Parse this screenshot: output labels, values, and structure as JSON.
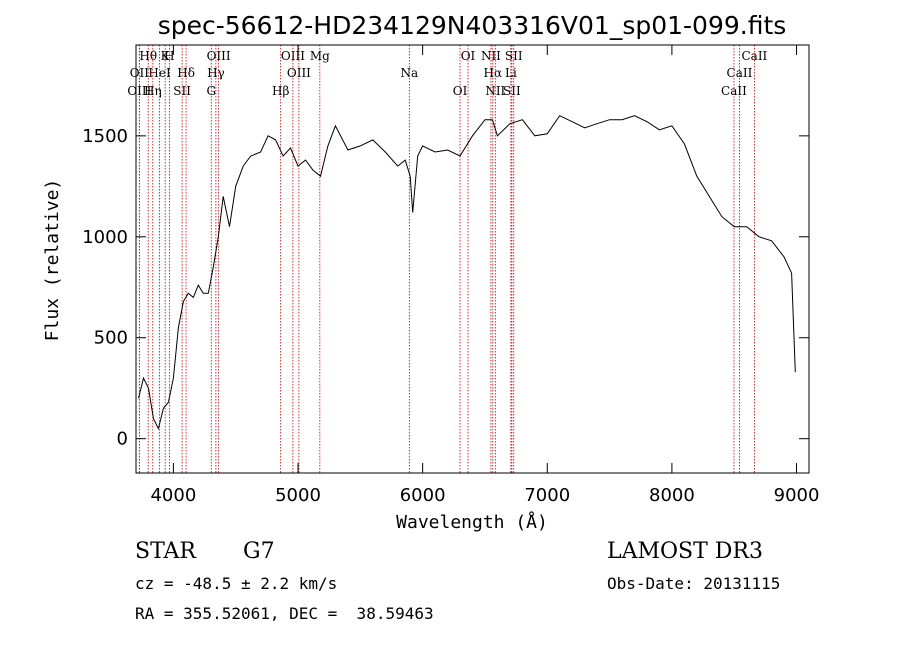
{
  "chart_data": {
    "type": "line",
    "title": "spec-56612-HD234129N403316V01_sp01-099.fits",
    "xlabel": "Wavelength (Å)",
    "ylabel": "Flux (relative)",
    "xlim": [
      3700,
      9100
    ],
    "ylim": [
      -170,
      1950
    ],
    "x_ticks": [
      4000,
      5000,
      6000,
      7000,
      8000,
      9000
    ],
    "y_ticks": [
      0,
      500,
      1000,
      1500
    ],
    "grid": false,
    "series": [
      {
        "x": [
          3720,
          3760,
          3800,
          3840,
          3880,
          3920,
          3960,
          4000,
          4040,
          4080,
          4120,
          4160,
          4200,
          4240,
          4280,
          4320,
          4360,
          4400,
          4450,
          4500,
          4560,
          4620,
          4700,
          4760,
          4820,
          4880,
          4940,
          5000,
          5060,
          5120,
          5180,
          5240,
          5300,
          5400,
          5500,
          5600,
          5700,
          5800,
          5860,
          5900,
          5920,
          5960,
          6000,
          6100,
          6200,
          6300,
          6400,
          6500,
          6560,
          6600,
          6700,
          6800,
          6900,
          7000,
          7100,
          7200,
          7300,
          7400,
          7500,
          7600,
          7700,
          7800,
          7900,
          8000,
          8100,
          8200,
          8300,
          8400,
          8500,
          8600,
          8700,
          8800,
          8900,
          8960,
          8990
        ],
        "y": [
          200,
          300,
          250,
          100,
          50,
          150,
          180,
          300,
          550,
          680,
          720,
          700,
          760,
          720,
          720,
          850,
          1000,
          1200,
          1050,
          1250,
          1350,
          1400,
          1420,
          1500,
          1480,
          1400,
          1440,
          1350,
          1380,
          1330,
          1300,
          1450,
          1550,
          1430,
          1450,
          1480,
          1420,
          1350,
          1380,
          1300,
          1120,
          1400,
          1450,
          1420,
          1430,
          1400,
          1500,
          1580,
          1580,
          1500,
          1560,
          1580,
          1500,
          1510,
          1600,
          1570,
          1540,
          1560,
          1580,
          1580,
          1600,
          1570,
          1530,
          1550,
          1460,
          1300,
          1200,
          1100,
          1050,
          1050,
          1000,
          980,
          900,
          820,
          330
        ]
      }
    ],
    "spectral_lines": [
      {
        "label": "Hθ",
        "x": 3798
      },
      {
        "label": "OII",
        "x": 3727
      },
      {
        "label": "OIII",
        "x": 3727
      },
      {
        "label": "K",
        "x": 3934
      },
      {
        "label": "HeI",
        "x": 3889
      },
      {
        "label": "Hη",
        "x": 3835
      },
      {
        "label": "H",
        "x": 3968
      },
      {
        "label": "Hδ",
        "x": 4102
      },
      {
        "label": "SII",
        "x": 4070
      },
      {
        "label": "OIII",
        "x": 4363
      },
      {
        "label": "Hγ",
        "x": 4341
      },
      {
        "label": "G",
        "x": 4304
      },
      {
        "label": "OIII",
        "x": 4959
      },
      {
        "label": "OIII",
        "x": 5007
      },
      {
        "label": "Hβ",
        "x": 4861
      },
      {
        "label": "Mg",
        "x": 5175
      },
      {
        "label": "Na",
        "x": 5893
      },
      {
        "label": "OI",
        "x": 6300
      },
      {
        "label": "OI",
        "x": 6364
      },
      {
        "label": "Hα",
        "x": 6563
      },
      {
        "label": "SII",
        "x": 6716
      },
      {
        "label": "NII",
        "x": 6548
      },
      {
        "label": "Li",
        "x": 6708
      },
      {
        "label": "NII",
        "x": 6583
      },
      {
        "label": "SII",
        "x": 6731
      },
      {
        "label": "CaII",
        "x": 8542
      },
      {
        "label": "CaII",
        "x": 8498
      },
      {
        "label": "CaII",
        "x": 8662
      }
    ]
  },
  "info": {
    "object_type": "STAR",
    "subclass": "G7",
    "survey": "LAMOST DR3",
    "cz": "cz = -48.5 ± 2.2 km/s",
    "obs_date": "Obs-Date: 20131115",
    "coords": "RA = 355.52061, DEC =  38.59463"
  },
  "colors": {
    "axis": "#000000",
    "spectrum": "#000000",
    "line_marker": "#c00000"
  }
}
